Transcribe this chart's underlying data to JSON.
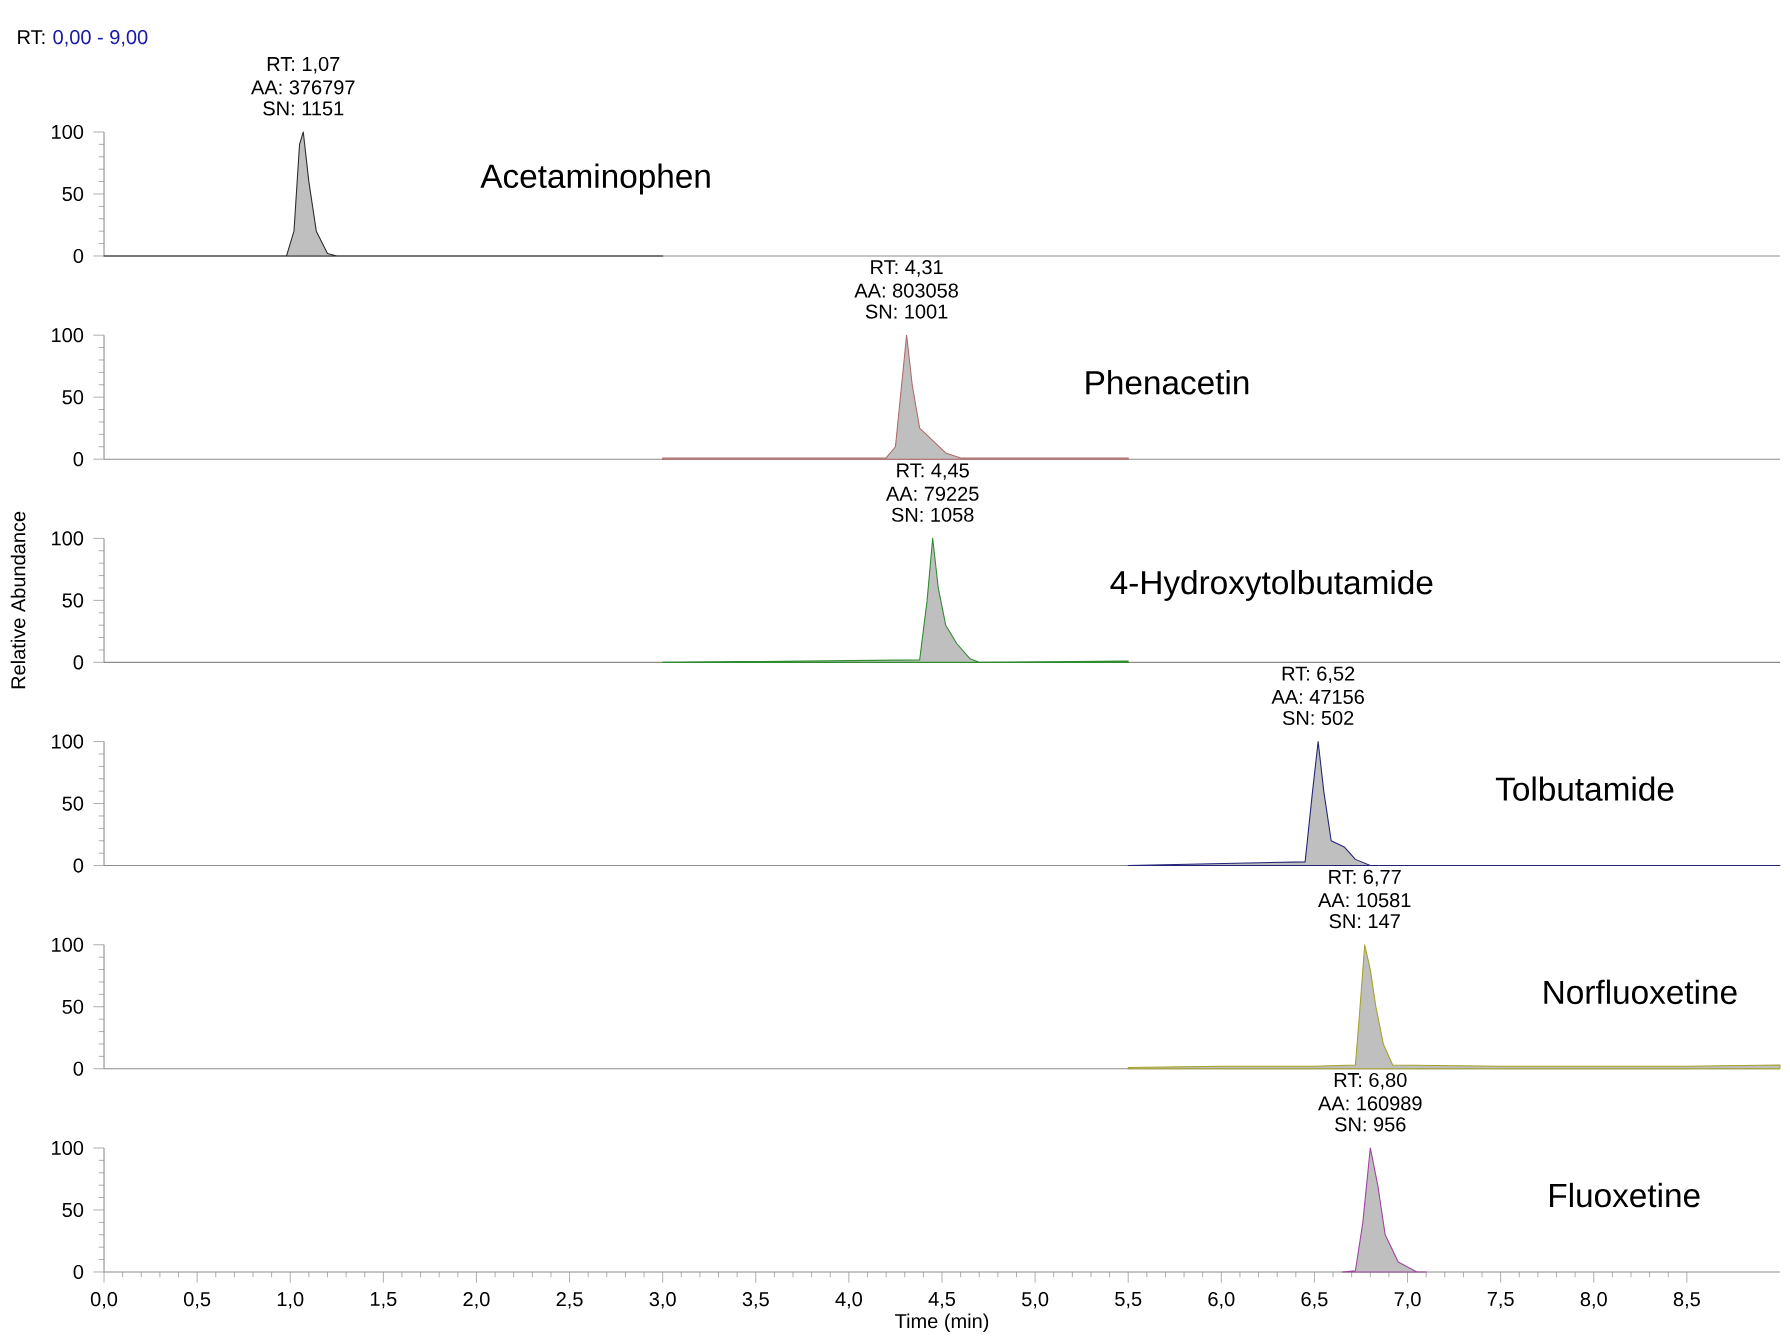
{
  "chart_data": [
    {
      "type": "area",
      "title": "RT:",
      "subtitle": "0,00 - 9,00",
      "xlim": [
        0,
        9
      ],
      "ylim": [
        0,
        100
      ],
      "yticks": [
        0,
        50,
        100
      ],
      "tick_labels": "y",
      "series": [
        {
          "name": "Acetaminophen",
          "color": "#2b2b2b",
          "x": [
            0,
            0.98,
            1.02,
            1.05,
            1.07,
            1.1,
            1.14,
            1.2,
            1.25,
            3.0
          ],
          "values": [
            0,
            0,
            20,
            90,
            100,
            60,
            20,
            2,
            0,
            0
          ]
        }
      ],
      "annotations": [
        {
          "text": "RT: 1,07",
          "x": 1.07,
          "y": 100
        },
        {
          "text": "AA: 376797",
          "x": 1.07,
          "y": 100
        },
        {
          "text": "SN: 1151",
          "x": 1.07,
          "y": 100
        }
      ]
    },
    {
      "type": "area",
      "xlim": [
        0,
        9
      ],
      "ylim": [
        0,
        100
      ],
      "yticks": [
        0,
        50,
        100
      ],
      "tick_labels": "y",
      "series": [
        {
          "name": "Phenacetin",
          "color": "#b06a6a",
          "x": [
            3.0,
            4.2,
            4.25,
            4.29,
            4.31,
            4.34,
            4.38,
            4.45,
            4.52,
            4.6,
            5.5
          ],
          "values": [
            1,
            1,
            10,
            70,
            100,
            60,
            25,
            15,
            5,
            1,
            1
          ]
        }
      ],
      "annotations": [
        {
          "text": "RT: 4,31",
          "x": 4.31,
          "y": 100
        },
        {
          "text": "AA: 803058",
          "x": 4.31,
          "y": 100
        },
        {
          "text": "SN: 1001",
          "x": 4.31,
          "y": 100
        }
      ]
    },
    {
      "type": "area",
      "ylabel": "Relative Abundance",
      "xlim": [
        0,
        9
      ],
      "ylim": [
        0,
        100
      ],
      "yticks": [
        0,
        50,
        100
      ],
      "tick_labels": "y",
      "series": [
        {
          "name": "4-Hydroxytolbutamide",
          "color": "#2e8b2e",
          "x": [
            3.0,
            4.38,
            4.42,
            4.45,
            4.48,
            4.52,
            4.58,
            4.65,
            4.7,
            5.5
          ],
          "values": [
            0,
            2,
            50,
            100,
            60,
            30,
            15,
            3,
            0,
            1
          ]
        }
      ],
      "annotations": [
        {
          "text": "RT: 4,45",
          "x": 4.45,
          "y": 100
        },
        {
          "text": "AA: 79225",
          "x": 4.45,
          "y": 100
        },
        {
          "text": "SN: 1058",
          "x": 4.45,
          "y": 100
        }
      ]
    },
    {
      "type": "area",
      "xlim": [
        0,
        9
      ],
      "ylim": [
        0,
        100
      ],
      "yticks": [
        0,
        50,
        100
      ],
      "tick_labels": "y",
      "series": [
        {
          "name": "Tolbutamide",
          "color": "#23237a",
          "x": [
            5.5,
            6.45,
            6.49,
            6.52,
            6.55,
            6.59,
            6.66,
            6.72,
            6.8,
            9.0
          ],
          "values": [
            0,
            3,
            60,
            100,
            60,
            20,
            15,
            5,
            0,
            0
          ]
        }
      ],
      "annotations": [
        {
          "text": "RT: 6,52",
          "x": 6.52,
          "y": 100
        },
        {
          "text": "AA: 47156",
          "x": 6.52,
          "y": 100
        },
        {
          "text": "SN: 502",
          "x": 6.52,
          "y": 100
        }
      ]
    },
    {
      "type": "area",
      "xlim": [
        0,
        9
      ],
      "ylim": [
        0,
        100
      ],
      "yticks": [
        0,
        50,
        100
      ],
      "tick_labels": "y",
      "series": [
        {
          "name": "Norfluoxetine",
          "color": "#a3a325",
          "x": [
            5.5,
            6.0,
            6.5,
            6.72,
            6.74,
            6.77,
            6.8,
            6.83,
            6.87,
            6.92,
            7.5,
            8.0,
            8.5,
            9.0
          ],
          "values": [
            1,
            2,
            2,
            3,
            40,
            100,
            80,
            50,
            20,
            3,
            2,
            2,
            2,
            3
          ]
        }
      ],
      "annotations": [
        {
          "text": "RT: 6,77",
          "x": 6.77,
          "y": 100
        },
        {
          "text": "AA: 10581",
          "x": 6.77,
          "y": 100
        },
        {
          "text": "SN: 147",
          "x": 6.77,
          "y": 100
        }
      ]
    },
    {
      "type": "area",
      "xlabel": "Time (min)",
      "xlim": [
        0,
        9
      ],
      "ylim": [
        0,
        100
      ],
      "yticks": [
        0,
        50,
        100
      ],
      "xticks": [
        {
          "value": 0,
          "label": "0,0"
        },
        {
          "value": 0.5,
          "label": "0,5"
        },
        {
          "value": 1,
          "label": "1,0"
        },
        {
          "value": 1.5,
          "label": "1,5"
        },
        {
          "value": 2,
          "label": "2,0"
        },
        {
          "value": 2.5,
          "label": "2,5"
        },
        {
          "value": 3,
          "label": "3,0"
        },
        {
          "value": 3.5,
          "label": "3,5"
        },
        {
          "value": 4,
          "label": "4,0"
        },
        {
          "value": 4.5,
          "label": "4,5"
        },
        {
          "value": 5,
          "label": "5,0"
        },
        {
          "value": 5.5,
          "label": "5,5"
        },
        {
          "value": 6,
          "label": "6,0"
        },
        {
          "value": 6.5,
          "label": "6,5"
        },
        {
          "value": 7,
          "label": "7,0"
        },
        {
          "value": 7.5,
          "label": "7,5"
        },
        {
          "value": 8,
          "label": "8,0"
        },
        {
          "value": 8.5,
          "label": "8,5"
        }
      ],
      "series": [
        {
          "name": "Fluoxetine",
          "color": "#a040a0",
          "x": [
            6.65,
            6.72,
            6.76,
            6.8,
            6.84,
            6.88,
            6.95,
            7.05,
            7.1
          ],
          "values": [
            0,
            1,
            40,
            100,
            70,
            30,
            8,
            0,
            0
          ]
        }
      ],
      "annotations": [
        {
          "text": "RT: 6,80",
          "x": 6.8,
          "y": 100
        },
        {
          "text": "AA: 160989",
          "x": 6.8,
          "y": 100
        },
        {
          "text": "SN: 956",
          "x": 6.8,
          "y": 100
        }
      ]
    }
  ]
}
